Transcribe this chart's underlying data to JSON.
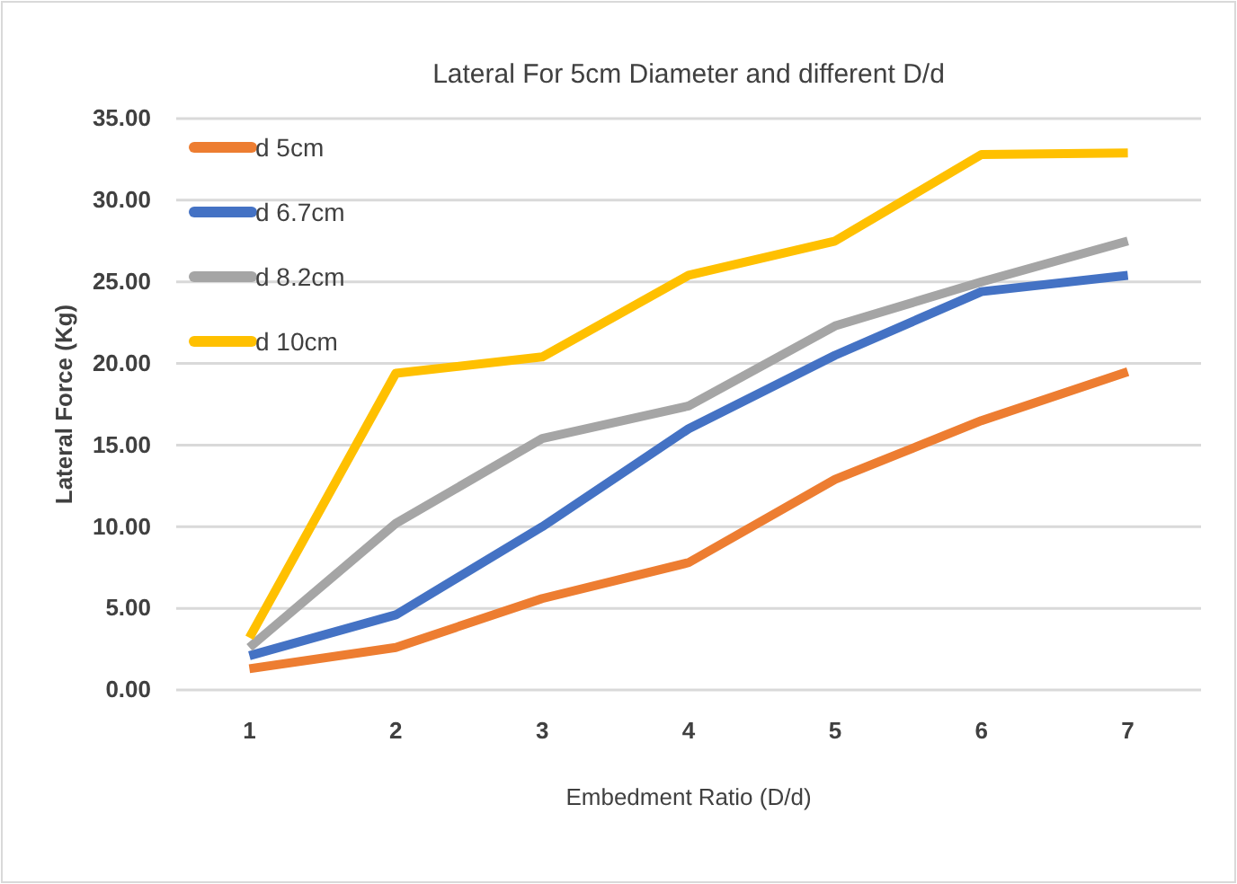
{
  "chart_data": {
    "type": "line",
    "title": "Lateral For 5cm Diameter and different D/d",
    "xlabel": "Embedment Ratio (D/d)",
    "ylabel": "Lateral Force (Kg)",
    "categories": [
      "1",
      "2",
      "3",
      "4",
      "5",
      "6",
      "7"
    ],
    "series": [
      {
        "name": "d 5cm",
        "color": "#ed7d31",
        "values": [
          1.3,
          2.6,
          5.6,
          7.8,
          12.9,
          16.5,
          19.5
        ]
      },
      {
        "name": "d 6.7cm",
        "color": "#4472c4",
        "values": [
          2.1,
          4.6,
          10.0,
          16.0,
          20.5,
          24.4,
          25.4
        ]
      },
      {
        "name": "d 8.2cm",
        "color": "#a5a5a5",
        "values": [
          2.6,
          10.2,
          15.4,
          17.4,
          22.3,
          25.0,
          27.5
        ]
      },
      {
        "name": "d 10cm",
        "color": "#ffc000",
        "values": [
          3.2,
          19.4,
          20.4,
          25.4,
          27.5,
          32.8,
          32.9
        ]
      }
    ],
    "ylim": [
      0,
      35
    ],
    "yticks": [
      {
        "value": 0,
        "label": "0.00"
      },
      {
        "value": 5,
        "label": "5.00"
      },
      {
        "value": 10,
        "label": "10.00"
      },
      {
        "value": 15,
        "label": "15.00"
      },
      {
        "value": 20,
        "label": "20.00"
      },
      {
        "value": 25,
        "label": "25.00"
      },
      {
        "value": 30,
        "label": "30.00"
      },
      {
        "value": 35,
        "label": "35.00"
      }
    ],
    "grid": "y",
    "legend": "top left",
    "marker": "none",
    "line_style": "solid"
  }
}
